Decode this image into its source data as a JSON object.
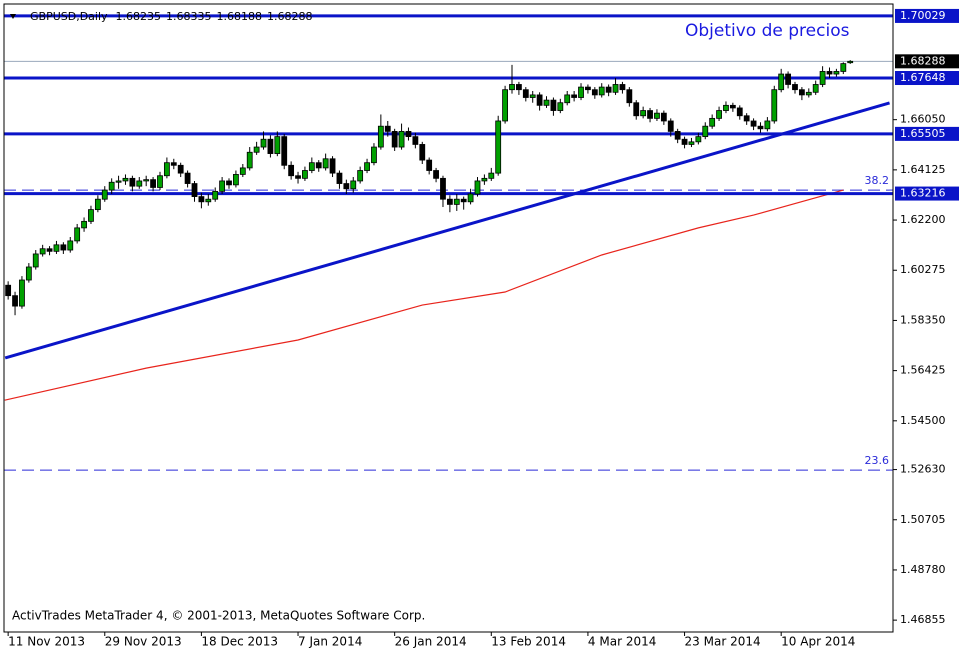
{
  "chart_data": {
    "type": "candlestick",
    "symbol": "GBPUSD,Daily",
    "annotation": "Objetivo de precios",
    "footer": "ActivTrades MetaTrader 4, © 2001-2013, MetaQuotes Software Corp.",
    "bull_color": "#00a000",
    "bear_color": "#000000",
    "candles": [
      [
        1.597,
        1.5985,
        1.5915,
        1.593
      ],
      [
        1.593,
        1.5945,
        1.5855,
        1.589
      ],
      [
        1.589,
        1.6005,
        1.588,
        1.599
      ],
      [
        1.599,
        1.6055,
        1.598,
        1.604
      ],
      [
        1.604,
        1.6105,
        1.603,
        1.609
      ],
      [
        1.609,
        1.6125,
        1.608,
        1.611
      ],
      [
        1.611,
        1.612,
        1.6085,
        1.61
      ],
      [
        1.61,
        1.614,
        1.609,
        1.6125
      ],
      [
        1.6125,
        1.6135,
        1.609,
        1.6105
      ],
      [
        1.6105,
        1.6155,
        1.6095,
        1.614
      ],
      [
        1.614,
        1.6205,
        1.613,
        1.619
      ],
      [
        1.619,
        1.623,
        1.6175,
        1.6215
      ],
      [
        1.6215,
        1.6275,
        1.6205,
        1.626
      ],
      [
        1.626,
        1.6315,
        1.625,
        1.63
      ],
      [
        1.63,
        1.635,
        1.629,
        1.6335
      ],
      [
        1.6335,
        1.638,
        1.632,
        1.6365
      ],
      [
        1.6365,
        1.639,
        1.634,
        1.637
      ],
      [
        1.637,
        1.6395,
        1.6355,
        1.638
      ],
      [
        1.638,
        1.639,
        1.633,
        1.635
      ],
      [
        1.635,
        1.6385,
        1.634,
        1.637
      ],
      [
        1.637,
        1.639,
        1.635,
        1.6375
      ],
      [
        1.6375,
        1.6385,
        1.633,
        1.6345
      ],
      [
        1.6345,
        1.6405,
        1.6335,
        1.639
      ],
      [
        1.639,
        1.646,
        1.638,
        1.644
      ],
      [
        1.644,
        1.6455,
        1.6415,
        1.643
      ],
      [
        1.643,
        1.644,
        1.6385,
        1.64
      ],
      [
        1.64,
        1.641,
        1.6345,
        1.636
      ],
      [
        1.636,
        1.637,
        1.629,
        1.631
      ],
      [
        1.631,
        1.6325,
        1.6265,
        1.629
      ],
      [
        1.629,
        1.632,
        1.6275,
        1.63
      ],
      [
        1.63,
        1.6345,
        1.629,
        1.633
      ],
      [
        1.633,
        1.6385,
        1.632,
        1.637
      ],
      [
        1.637,
        1.638,
        1.634,
        1.6355
      ],
      [
        1.6355,
        1.641,
        1.6345,
        1.6395
      ],
      [
        1.6395,
        1.6435,
        1.6385,
        1.642
      ],
      [
        1.642,
        1.65,
        1.641,
        1.648
      ],
      [
        1.648,
        1.652,
        1.647,
        1.65
      ],
      [
        1.65,
        1.656,
        1.649,
        1.653
      ],
      [
        1.653,
        1.6545,
        1.646,
        1.6475
      ],
      [
        1.6475,
        1.656,
        1.6465,
        1.654
      ],
      [
        1.654,
        1.655,
        1.6415,
        1.643
      ],
      [
        1.643,
        1.6445,
        1.6375,
        1.639
      ],
      [
        1.639,
        1.6405,
        1.636,
        1.638
      ],
      [
        1.638,
        1.6425,
        1.637,
        1.641
      ],
      [
        1.641,
        1.646,
        1.64,
        1.644
      ],
      [
        1.644,
        1.645,
        1.6405,
        1.642
      ],
      [
        1.642,
        1.6475,
        1.641,
        1.6455
      ],
      [
        1.6455,
        1.6465,
        1.6385,
        1.64
      ],
      [
        1.64,
        1.641,
        1.634,
        1.636
      ],
      [
        1.636,
        1.6375,
        1.632,
        1.634
      ],
      [
        1.634,
        1.6385,
        1.6325,
        1.637
      ],
      [
        1.637,
        1.6425,
        1.636,
        1.641
      ],
      [
        1.641,
        1.6455,
        1.64,
        1.644
      ],
      [
        1.644,
        1.6515,
        1.643,
        1.65
      ],
      [
        1.65,
        1.6625,
        1.649,
        1.658
      ],
      [
        1.658,
        1.66,
        1.654,
        1.656
      ],
      [
        1.656,
        1.657,
        1.6485,
        1.65
      ],
      [
        1.65,
        1.659,
        1.649,
        1.656
      ],
      [
        1.656,
        1.6575,
        1.6525,
        1.654
      ],
      [
        1.654,
        1.6555,
        1.6495,
        1.651
      ],
      [
        1.651,
        1.652,
        1.6435,
        1.645
      ],
      [
        1.645,
        1.646,
        1.6395,
        1.641
      ],
      [
        1.641,
        1.642,
        1.6365,
        1.638
      ],
      [
        1.638,
        1.639,
        1.627,
        1.63
      ],
      [
        1.63,
        1.6315,
        1.625,
        1.628
      ],
      [
        1.628,
        1.632,
        1.6255,
        1.63
      ],
      [
        1.63,
        1.631,
        1.626,
        1.629
      ],
      [
        1.629,
        1.634,
        1.628,
        1.632
      ],
      [
        1.632,
        1.6385,
        1.631,
        1.637
      ],
      [
        1.637,
        1.6395,
        1.6355,
        1.638
      ],
      [
        1.638,
        1.642,
        1.637,
        1.64
      ],
      [
        1.64,
        1.662,
        1.639,
        1.66
      ],
      [
        1.66,
        1.6735,
        1.659,
        1.672
      ],
      [
        1.672,
        1.6815,
        1.6705,
        1.674
      ],
      [
        1.674,
        1.675,
        1.67,
        1.672
      ],
      [
        1.672,
        1.673,
        1.6675,
        1.669
      ],
      [
        1.669,
        1.6715,
        1.667,
        1.67
      ],
      [
        1.67,
        1.671,
        1.664,
        1.666
      ],
      [
        1.666,
        1.6695,
        1.665,
        1.668
      ],
      [
        1.668,
        1.669,
        1.662,
        1.664
      ],
      [
        1.664,
        1.6685,
        1.663,
        1.667
      ],
      [
        1.667,
        1.6715,
        1.666,
        1.67
      ],
      [
        1.67,
        1.6715,
        1.6675,
        1.669
      ],
      [
        1.669,
        1.6745,
        1.668,
        1.673
      ],
      [
        1.673,
        1.674,
        1.6705,
        1.672
      ],
      [
        1.672,
        1.673,
        1.6685,
        1.67
      ],
      [
        1.67,
        1.6745,
        1.669,
        1.673
      ],
      [
        1.673,
        1.674,
        1.6695,
        1.671
      ],
      [
        1.671,
        1.6765,
        1.67,
        1.674
      ],
      [
        1.674,
        1.675,
        1.6705,
        1.672
      ],
      [
        1.672,
        1.673,
        1.6655,
        1.667
      ],
      [
        1.667,
        1.668,
        1.6605,
        1.662
      ],
      [
        1.662,
        1.6655,
        1.661,
        1.664
      ],
      [
        1.664,
        1.665,
        1.6595,
        1.661
      ],
      [
        1.661,
        1.6645,
        1.66,
        1.663
      ],
      [
        1.663,
        1.664,
        1.6585,
        1.66
      ],
      [
        1.66,
        1.661,
        1.654,
        1.656
      ],
      [
        1.656,
        1.657,
        1.6515,
        1.653
      ],
      [
        1.653,
        1.654,
        1.6495,
        1.651
      ],
      [
        1.651,
        1.6535,
        1.65,
        1.652
      ],
      [
        1.652,
        1.6555,
        1.651,
        1.654
      ],
      [
        1.654,
        1.6595,
        1.653,
        1.658
      ],
      [
        1.658,
        1.6625,
        1.657,
        1.661
      ],
      [
        1.661,
        1.6655,
        1.66,
        1.664
      ],
      [
        1.664,
        1.6675,
        1.663,
        1.666
      ],
      [
        1.666,
        1.667,
        1.6635,
        1.665
      ],
      [
        1.665,
        1.666,
        1.6605,
        1.662
      ],
      [
        1.662,
        1.663,
        1.6585,
        1.66
      ],
      [
        1.66,
        1.661,
        1.6565,
        1.658
      ],
      [
        1.658,
        1.6595,
        1.6555,
        1.657
      ],
      [
        1.657,
        1.6615,
        1.656,
        1.66
      ],
      [
        1.66,
        1.6735,
        1.659,
        1.672
      ],
      [
        1.672,
        1.68,
        1.671,
        1.678
      ],
      [
        1.678,
        1.679,
        1.6725,
        1.674
      ],
      [
        1.674,
        1.675,
        1.6705,
        1.672
      ],
      [
        1.672,
        1.673,
        1.668,
        1.67
      ],
      [
        1.67,
        1.6725,
        1.669,
        1.671
      ],
      [
        1.671,
        1.6755,
        1.67,
        1.674
      ],
      [
        1.674,
        1.681,
        1.673,
        1.679
      ],
      [
        1.679,
        1.6805,
        1.6765,
        1.678
      ],
      [
        1.678,
        1.68,
        1.677,
        1.679
      ],
      [
        1.679,
        1.6825,
        1.678,
        1.682
      ],
      [
        1.68235,
        1.68335,
        1.68188,
        1.68288
      ]
    ],
    "xlim": [
      -0.6,
      128.2
    ],
    "xticks": [
      {
        "value": 0,
        "label": "11 Nov 2013"
      },
      {
        "value": 14,
        "label": "29 Nov 2013"
      },
      {
        "value": 28,
        "label": "18 Dec 2013"
      },
      {
        "value": 42,
        "label": "7 Jan 2014"
      },
      {
        "value": 56,
        "label": "26 Jan 2014"
      },
      {
        "value": 70,
        "label": "13 Feb 2014"
      },
      {
        "value": 84,
        "label": "4 Mar 2014"
      },
      {
        "value": 98,
        "label": "23 Mar 2014"
      },
      {
        "value": 112,
        "label": "10 Apr 2014"
      }
    ],
    "ylim": [
      1.464,
      1.7064
    ],
    "yticks": [
      {
        "value": 1.6605,
        "label": "1.66050"
      },
      1.64125,
      {
        "value": 1.622,
        "label": "1.62200"
      },
      1.60275,
      {
        "value": 1.5835,
        "label": "1.58350"
      },
      1.56425,
      {
        "value": 1.545,
        "label": "1.54500"
      },
      {
        "value": 1.5263,
        "label": "1.52630"
      },
      1.50705,
      {
        "value": 1.4878,
        "label": "1.48780"
      },
      1.46855
    ],
    "levels": [
      {
        "value": 1.70029,
        "color": "#0a14c8"
      },
      {
        "value": 1.67648,
        "color": "#0a14c8"
      },
      {
        "value": 1.65505,
        "color": "#0a14c8"
      },
      {
        "value": 1.63216,
        "color": "#0a14c8"
      }
    ],
    "current_price": 1.68288,
    "trendline": {
      "x": [
        -0.43,
        127.7
      ],
      "values": [
        1.5691,
        1.6669
      ],
      "color": "#0a14c8"
    },
    "moving_average": {
      "x": [
        -0.5,
        20,
        42,
        60,
        72,
        86,
        100,
        108,
        121
      ],
      "values": [
        1.5529,
        1.5652,
        1.576,
        1.5894,
        1.5944,
        1.6086,
        1.619,
        1.6239,
        1.6335
      ],
      "color": "#e8241c"
    },
    "fibonacci": [
      {
        "label": "38.2",
        "value": 1.6335
      },
      {
        "label": "23.6",
        "value": 1.5261
      }
    ],
    "fib_color": "#2a2ad8"
  }
}
